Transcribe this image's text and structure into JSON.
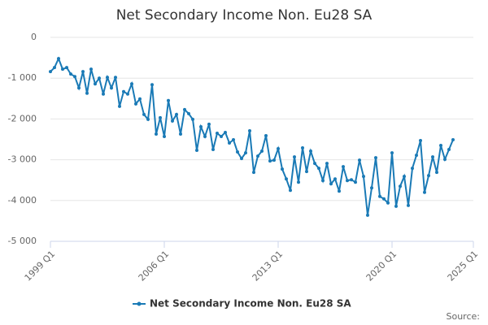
{
  "chart_data": {
    "type": "line",
    "title": "Net Secondary Income Non. Eu28 SA",
    "categories": [
      "1999 Q1",
      "1999 Q2",
      "1999 Q3",
      "1999 Q4",
      "2000 Q1",
      "2000 Q2",
      "2000 Q3",
      "2000 Q4",
      "2001 Q1",
      "2001 Q2",
      "2001 Q3",
      "2001 Q4",
      "2002 Q1",
      "2002 Q2",
      "2002 Q3",
      "2002 Q4",
      "2003 Q1",
      "2003 Q2",
      "2003 Q3",
      "2003 Q4",
      "2004 Q1",
      "2004 Q2",
      "2004 Q3",
      "2004 Q4",
      "2005 Q1",
      "2005 Q2",
      "2005 Q3",
      "2005 Q4",
      "2006 Q1",
      "2006 Q2",
      "2006 Q3",
      "2006 Q4",
      "2007 Q1",
      "2007 Q2",
      "2007 Q3",
      "2007 Q4",
      "2008 Q1",
      "2008 Q2",
      "2008 Q3",
      "2008 Q4",
      "2009 Q1",
      "2009 Q2",
      "2009 Q3",
      "2009 Q4",
      "2010 Q1",
      "2010 Q2",
      "2010 Q3",
      "2010 Q4",
      "2011 Q1",
      "2011 Q2",
      "2011 Q3",
      "2011 Q4",
      "2012 Q1",
      "2012 Q2",
      "2012 Q3",
      "2012 Q4",
      "2013 Q1",
      "2013 Q2",
      "2013 Q3",
      "2013 Q4",
      "2014 Q1",
      "2014 Q2",
      "2014 Q3",
      "2014 Q4",
      "2015 Q1",
      "2015 Q2",
      "2015 Q3",
      "2015 Q4",
      "2016 Q1",
      "2016 Q2",
      "2016 Q3",
      "2016 Q4",
      "2017 Q1",
      "2017 Q2",
      "2017 Q3",
      "2017 Q4",
      "2018 Q1",
      "2018 Q2",
      "2018 Q3",
      "2018 Q4",
      "2019 Q1",
      "2019 Q2",
      "2019 Q3",
      "2019 Q4",
      "2020 Q1",
      "2020 Q2",
      "2020 Q3",
      "2020 Q4",
      "2021 Q1",
      "2021 Q2",
      "2021 Q3",
      "2021 Q4",
      "2022 Q1",
      "2022 Q2",
      "2022 Q3",
      "2022 Q4",
      "2023 Q1",
      "2023 Q2",
      "2023 Q3",
      "2023 Q4"
    ],
    "series": [
      {
        "name": "Net Secondary Income Non. Eu28 SA",
        "color": "#1a7ab6",
        "values": [
          -840,
          -740,
          -520,
          -780,
          -740,
          -900,
          -960,
          -1240,
          -840,
          -1370,
          -780,
          -1140,
          -1000,
          -1390,
          -980,
          -1240,
          -980,
          -1690,
          -1330,
          -1390,
          -1140,
          -1630,
          -1510,
          -1890,
          -2010,
          -1160,
          -2370,
          -1970,
          -2430,
          -1550,
          -2050,
          -1890,
          -2370,
          -1770,
          -1870,
          -2010,
          -2770,
          -2190,
          -2430,
          -2130,
          -2750,
          -2350,
          -2430,
          -2330,
          -2590,
          -2510,
          -2810,
          -2970,
          -2830,
          -2290,
          -3310,
          -2910,
          -2790,
          -2410,
          -3030,
          -3010,
          -2730,
          -3230,
          -3470,
          -3750,
          -2930,
          -3550,
          -2710,
          -3290,
          -2790,
          -3090,
          -3210,
          -3510,
          -3090,
          -3590,
          -3470,
          -3770,
          -3170,
          -3510,
          -3490,
          -3550,
          -3010,
          -3410,
          -4360,
          -3690,
          -2950,
          -3900,
          -3960,
          -4060,
          -2830,
          -4140,
          -3650,
          -3410,
          -4120,
          -3210,
          -2890,
          -2530,
          -3800,
          -3390,
          -2930,
          -3310,
          -2650,
          -2990,
          -2750,
          -2510
        ]
      }
    ],
    "xticks": [
      "1999 Q1",
      "2006 Q1",
      "2013 Q1",
      "2020 Q1",
      "2025 Q1"
    ],
    "ylim": [
      -5000,
      0
    ],
    "yticks": [
      {
        "value": -5000,
        "label": "-5 000"
      },
      {
        "value": -4000,
        "label": "-4 000"
      },
      {
        "value": -3000,
        "label": "-3 000"
      },
      {
        "value": -2000,
        "label": "-2 000"
      },
      {
        "value": -1000,
        "label": "-1 000"
      },
      0
    ],
    "grid": true,
    "source": "Source:"
  }
}
